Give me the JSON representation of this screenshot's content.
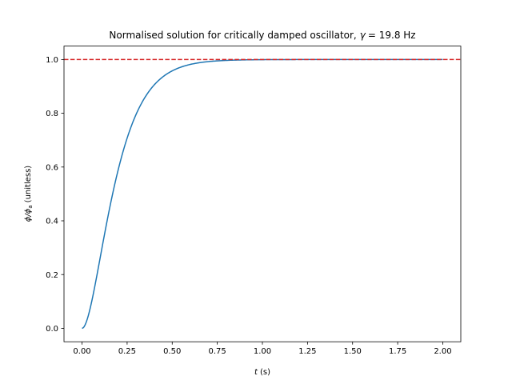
{
  "chart_data": {
    "type": "line",
    "title": "Normalised solution for critically damped oscillator,",
    "title_symbol": "γ",
    "title_rest": "= 19.8 Hz",
    "xlabel_symbol": "t",
    "xlabel_unit": "(s)",
    "ylabel_symbol": "ϕ/ϕ",
    "ylabel_subscript": "a",
    "ylabel_unit": "(unitless)",
    "xlim": [
      -0.1,
      2.1
    ],
    "ylim": [
      -0.05,
      1.05
    ],
    "x_ticks": [
      0.0,
      0.25,
      0.5,
      0.75,
      1.0,
      1.25,
      1.5,
      1.75,
      2.0
    ],
    "x_tick_labels": [
      "0.00",
      "0.25",
      "0.50",
      "0.75",
      "1.00",
      "1.25",
      "1.50",
      "1.75",
      "2.00"
    ],
    "y_ticks": [
      0.0,
      0.2,
      0.4,
      0.6,
      0.8,
      1.0
    ],
    "y_tick_labels": [
      "0.0",
      "0.2",
      "0.4",
      "0.6",
      "0.8",
      "1.0"
    ],
    "grid": false,
    "gamma_hz": 19.8,
    "series": [
      {
        "name": "phi/phi_a",
        "color": "#1f77b4",
        "x_range": [
          0.0,
          2.0
        ],
        "formula": "1 - (1 + gamma/2 * t) * exp(-gamma/2 * t)"
      }
    ],
    "reference_line": {
      "y": 1.0,
      "color": "#d62728",
      "style": "dashed"
    }
  }
}
